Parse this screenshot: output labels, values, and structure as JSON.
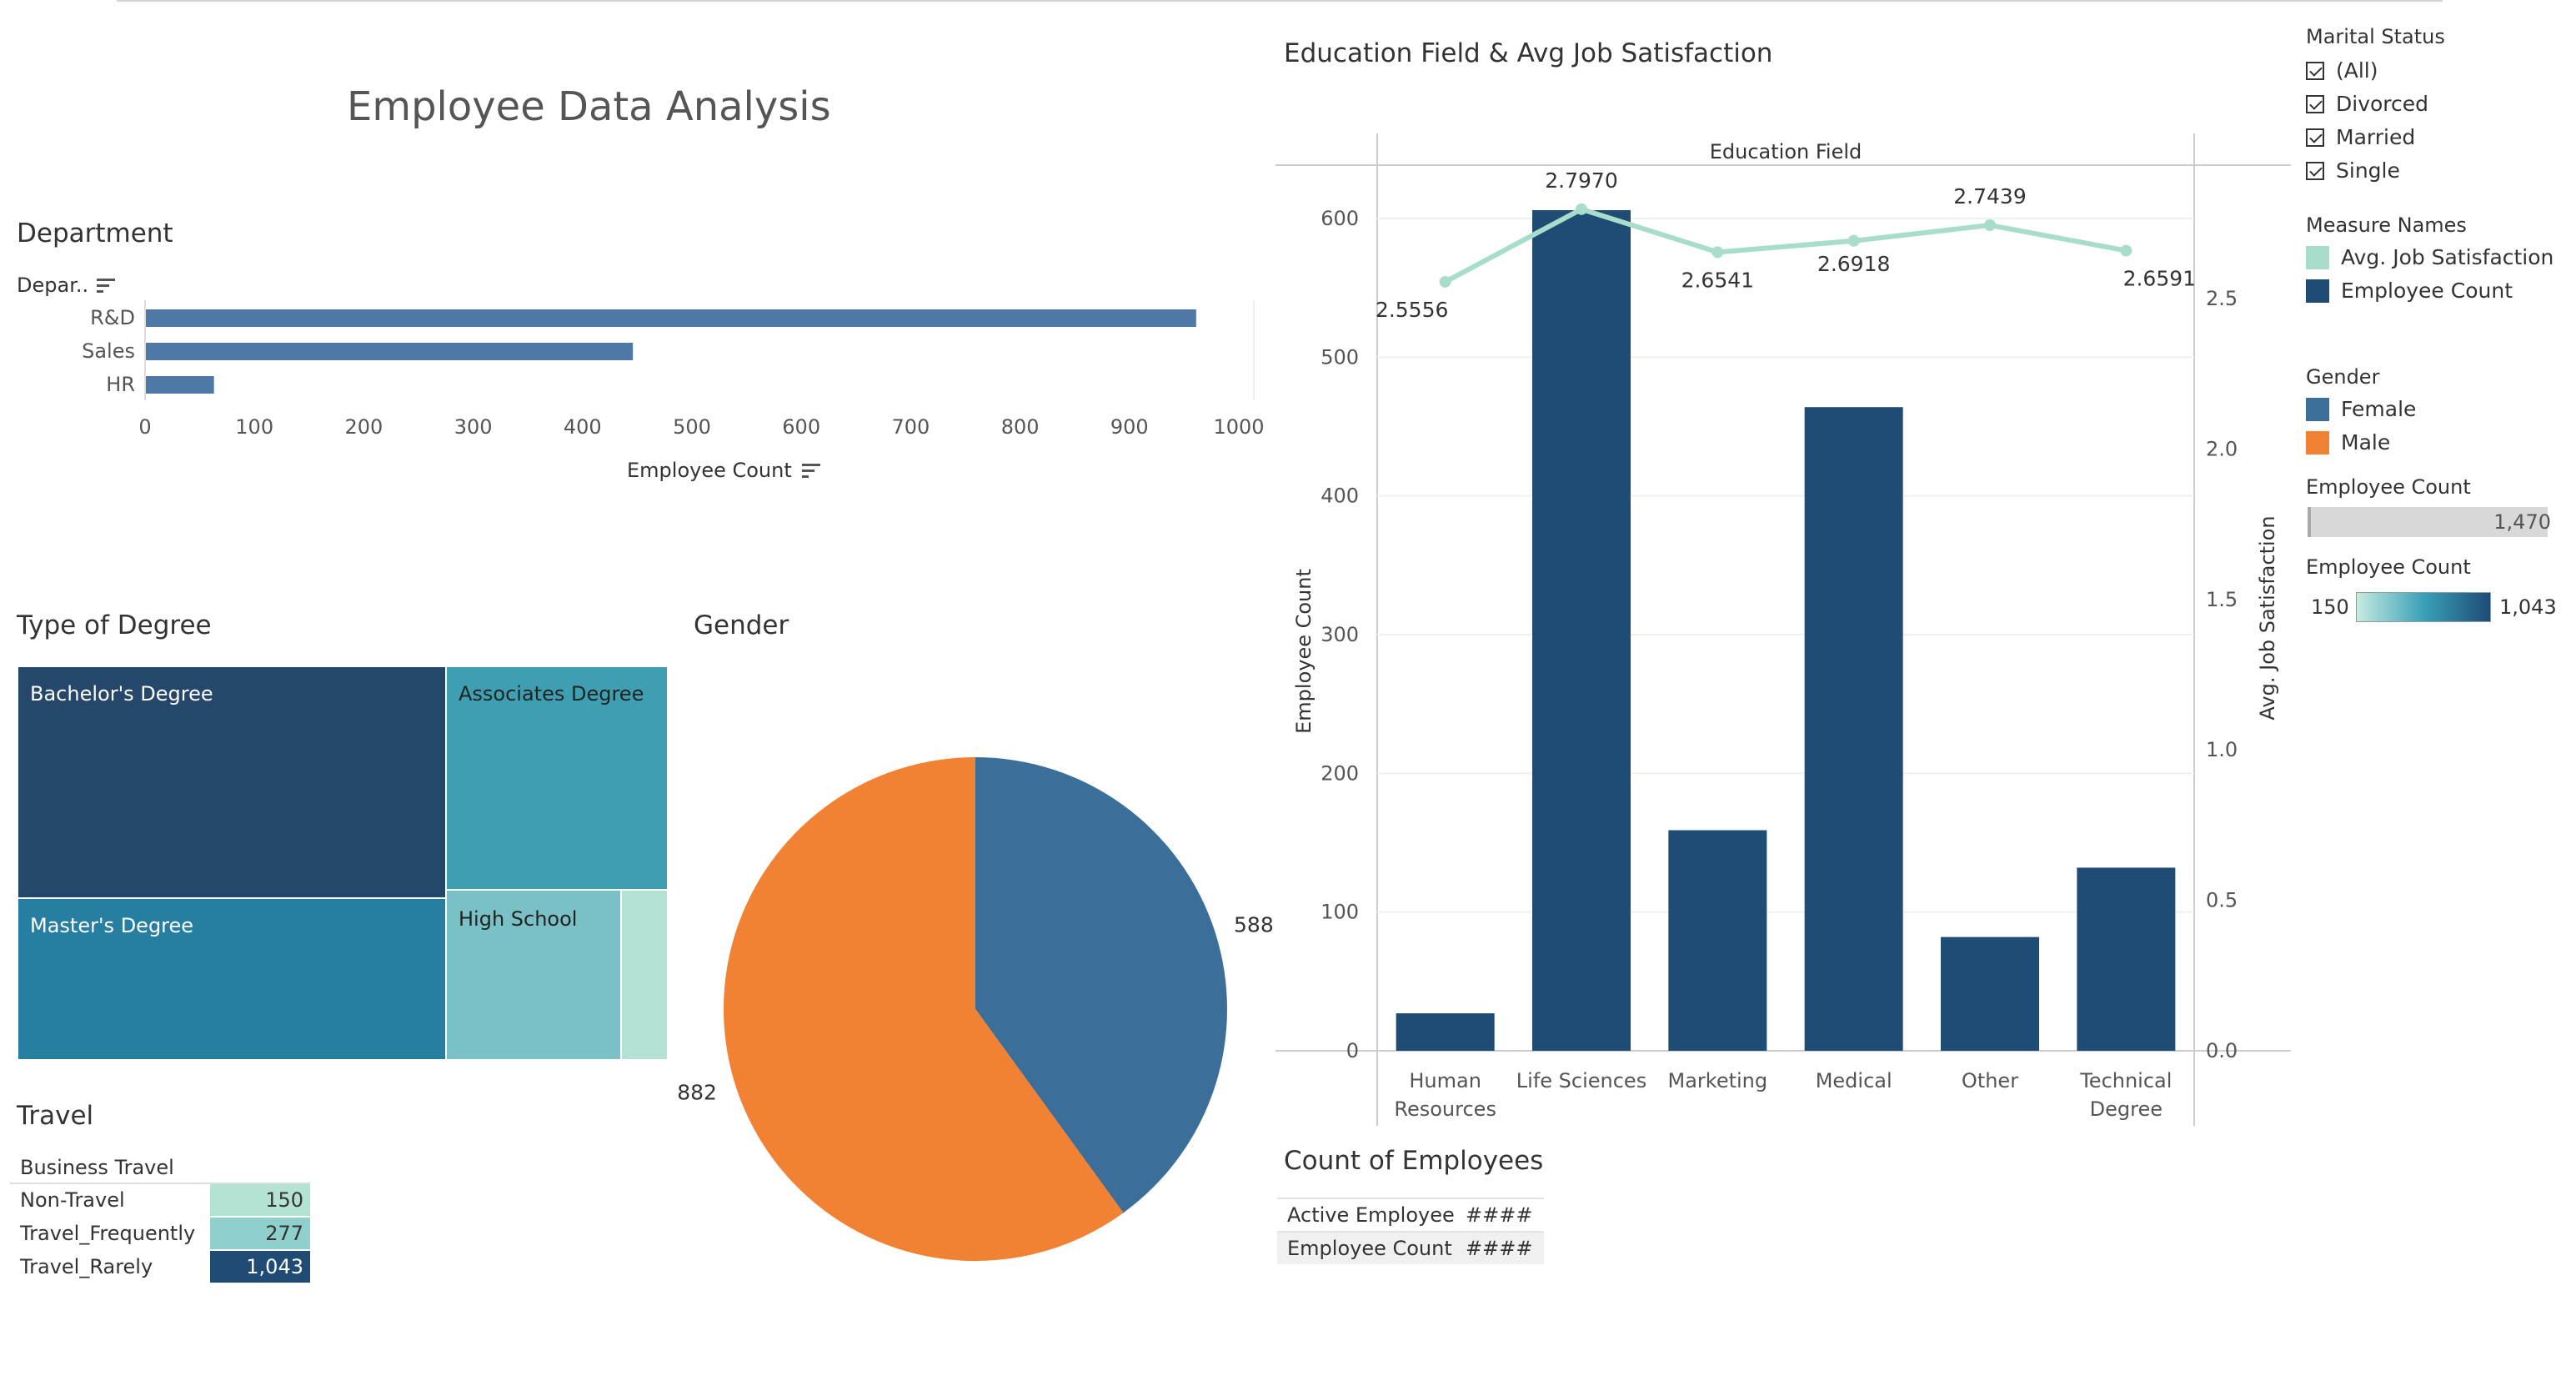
{
  "dashboard": {
    "title": "Employee Data Analysis"
  },
  "department": {
    "title": "Department",
    "dim_label": "Depar..",
    "chart_data": {
      "type": "bar",
      "orientation": "horizontal",
      "categories": [
        "R&D",
        "Sales",
        "HR"
      ],
      "values": [
        961,
        446,
        63
      ],
      "xlabel": "Employee Count",
      "xlim": [
        0,
        1000
      ],
      "xticks": [
        "0",
        "100",
        "200",
        "300",
        "400",
        "500",
        "600",
        "700",
        "800",
        "900",
        "1000"
      ],
      "color": "#4e79a7"
    }
  },
  "degree": {
    "title": "Type of Degree",
    "chart_data": {
      "type": "treemap",
      "labels": [
        "Bachelor's Degree",
        "Associates Degree",
        "Master's Degree",
        "High School",
        ""
      ],
      "colors": [
        "#24476b",
        "#3e9fb2",
        "#267fa1",
        "#79c1c7",
        "#b3e2d4"
      ]
    }
  },
  "gender": {
    "title": "Gender",
    "chart_data": {
      "type": "pie",
      "categories": [
        "Female",
        "Male"
      ],
      "values": [
        588,
        882
      ],
      "labels": [
        "588",
        "882"
      ],
      "colors": [
        "#3c6e9a",
        "#f28233"
      ]
    }
  },
  "travel": {
    "title": "Travel",
    "header": "Business Travel",
    "rows": [
      {
        "label": "Non-Travel",
        "value": "150",
        "bg": "#b4e3d4",
        "fg": "#333333"
      },
      {
        "label": "Travel_Frequently",
        "value": "277",
        "bg": "#8fcfcc",
        "fg": "#333333"
      },
      {
        "label": "Travel_Rarely",
        "value": "1,043",
        "bg": "#1f4b75",
        "fg": "#ffffff"
      }
    ]
  },
  "education": {
    "title": "Education Field & Avg Job Satisfaction",
    "chart_data": {
      "type": "bar+line",
      "header": "Education Field",
      "categories": [
        "Human Resources",
        "Life Sciences",
        "Marketing",
        "Medical",
        "Other",
        "Technical Degree"
      ],
      "category_lines": [
        [
          "Human",
          "Resources"
        ],
        [
          "Life Sciences"
        ],
        [
          "Marketing"
        ],
        [
          "Medical"
        ],
        [
          "Other"
        ],
        [
          "Technical",
          "Degree"
        ]
      ],
      "series": [
        {
          "name": "Employee Count",
          "type": "bar",
          "axis": "left",
          "values": [
            27,
            606,
            159,
            464,
            82,
            132
          ],
          "color": "#1f4c75"
        },
        {
          "name": "Avg. Job Satisfaction",
          "type": "line",
          "axis": "right",
          "values": [
            2.5556,
            2.797,
            2.6541,
            2.6918,
            2.7439,
            2.6591
          ],
          "labels": [
            "2.5556",
            "2.7970",
            "2.6541",
            "2.6918",
            "2.7439",
            "2.6591"
          ],
          "color": "#a8dccb"
        }
      ],
      "ylabel": "Employee Count",
      "ylim": [
        0,
        600
      ],
      "yticks": [
        "0",
        "100",
        "200",
        "300",
        "400",
        "500",
        "600"
      ],
      "y2label": "Avg. Job Satisfaction",
      "y2lim": [
        0,
        2.5
      ],
      "y2ticks": [
        "0.0",
        "0.5",
        "1.0",
        "1.5",
        "2.0",
        "2.5"
      ]
    }
  },
  "kpi": {
    "title": "Count of Employees",
    "rows": [
      {
        "label": "Active Employee",
        "value": "####"
      },
      {
        "label": "Employee Count",
        "value": "####"
      }
    ]
  },
  "legends": {
    "marital": {
      "title": "Marital Status",
      "items": [
        "(All)",
        "Divorced",
        "Married",
        "Single"
      ]
    },
    "measures": {
      "title": "Measure Names",
      "items": [
        {
          "label": "Avg. Job Satisfaction",
          "color": "#a8dccb"
        },
        {
          "label": "Employee Count",
          "color": "#1f4c75"
        }
      ]
    },
    "gender": {
      "title": "Gender",
      "items": [
        {
          "label": "Female",
          "color": "#3c6e9a"
        },
        {
          "label": "Male",
          "color": "#f28233"
        }
      ]
    },
    "count_slider": {
      "title": "Employee Count",
      "max": "1,470"
    },
    "count_gradient": {
      "title": "Employee Count",
      "min": "150",
      "max": "1,043"
    }
  }
}
